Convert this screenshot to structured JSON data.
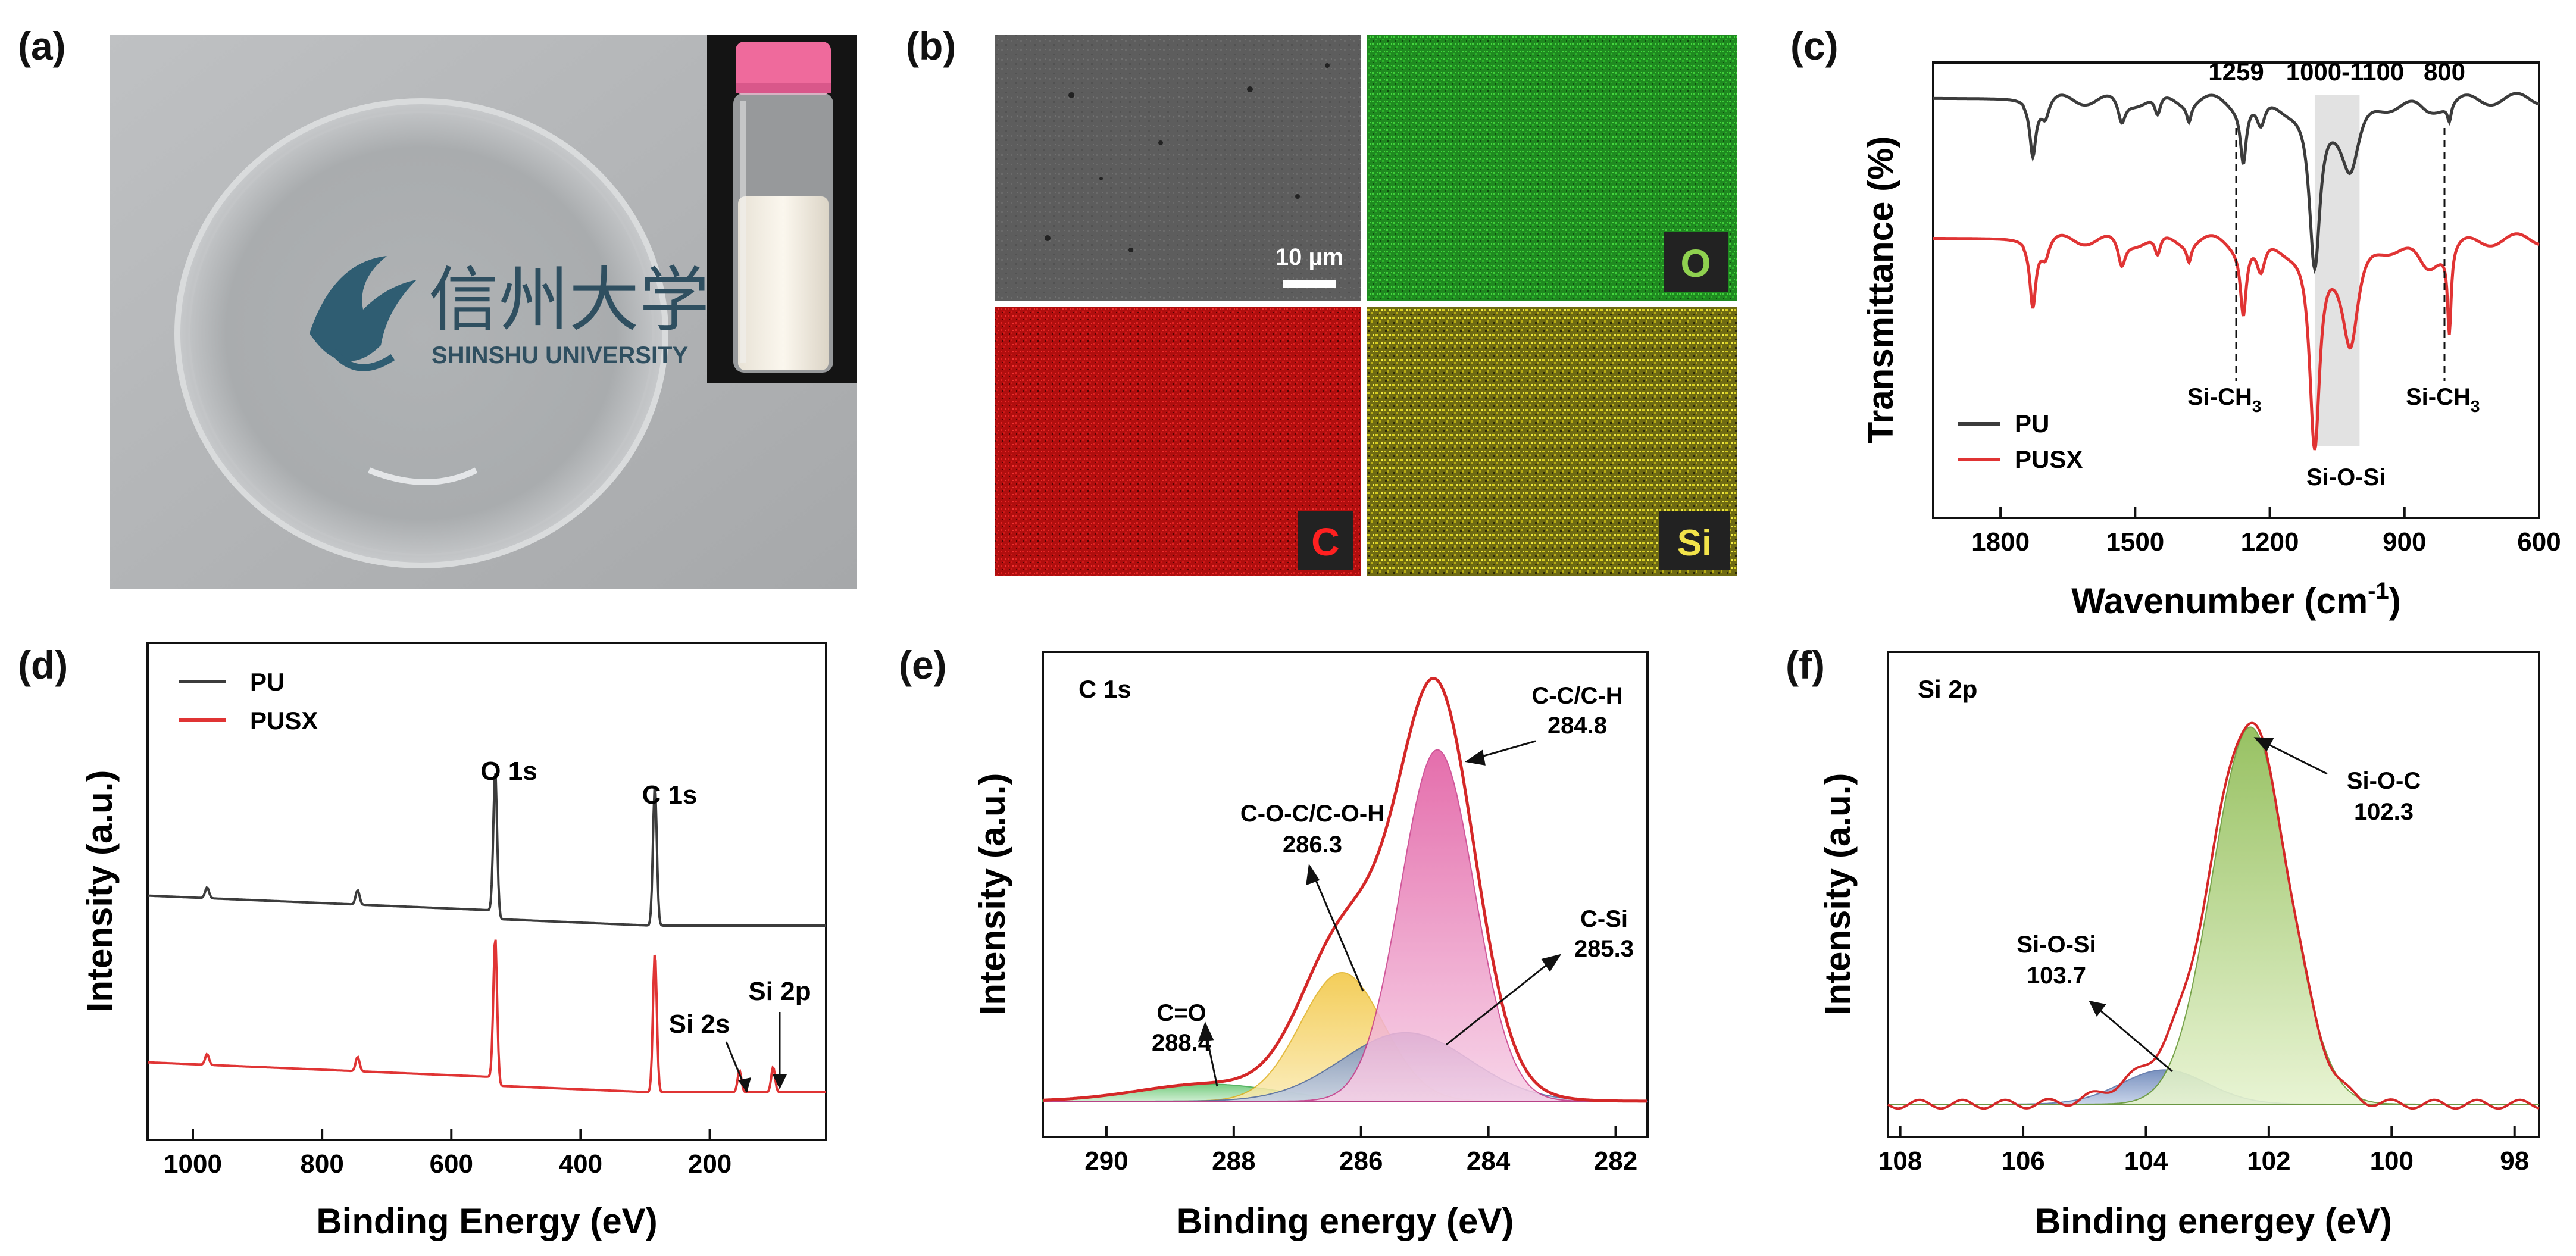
{
  "colors": {
    "pu": "#3c3c3c",
    "pusx": "#e03434",
    "envelope": "#d42828",
    "green": "#2fb032",
    "red": "#d61414",
    "yellow": "#d8c814"
  },
  "panels": {
    "a": {
      "label": "(a)",
      "logo_text_cn": "信州大学",
      "logo_text_en": "SHINSHU UNIVERSITY"
    },
    "b": {
      "label": "(b)",
      "scale_bar": "10 µm",
      "maps": [
        "O",
        "C",
        "Si"
      ]
    }
  },
  "chart_data": [
    {
      "id": "c",
      "panel_label": "(c)",
      "type": "line",
      "xlabel": "Wavenumber (cm",
      "xlabel_sup": "-1",
      "xlabel_end": ")",
      "ylabel": "Transmittance (%)",
      "xlim": [
        1950,
        600
      ],
      "xticks": [
        1800,
        1500,
        1200,
        900,
        600
      ],
      "legend": [
        "PU",
        "PUSX"
      ],
      "series": [
        {
          "name": "PU",
          "baseline": 1.0,
          "dips": [
            [
              1728,
              0.45,
              8
            ],
            [
              1700,
              0.15,
              10
            ],
            [
              1530,
              0.22,
              10
            ],
            [
              1450,
              0.18,
              8
            ],
            [
              1380,
              0.15,
              6
            ],
            [
              1259,
              0.5,
              8
            ],
            [
              1220,
              0.25,
              12
            ],
            [
              1100,
              1.5,
              15
            ],
            [
              1020,
              0.6,
              25
            ],
            [
              800,
              0.15,
              5
            ],
            [
              850,
              0.1,
              30
            ]
          ]
        },
        {
          "name": "PUSX",
          "baseline": 0.0,
          "dips": [
            [
              1728,
              0.55,
              8
            ],
            [
              1700,
              0.15,
              10
            ],
            [
              1530,
              0.25,
              10
            ],
            [
              1450,
              0.18,
              8
            ],
            [
              1380,
              0.15,
              6
            ],
            [
              1259,
              0.6,
              8
            ],
            [
              1220,
              0.3,
              12
            ],
            [
              1100,
              1.85,
              14
            ],
            [
              1020,
              0.9,
              22
            ],
            [
              800,
              0.75,
              5
            ],
            [
              850,
              0.25,
              30
            ]
          ]
        }
      ],
      "annotations": {
        "top": [
          "1259",
          "1000-1100",
          "800"
        ],
        "bottom": [
          "Si-CH",
          "Si-O-Si",
          "Si-CH"
        ],
        "sub3": "3"
      }
    },
    {
      "id": "d",
      "panel_label": "(d)",
      "type": "line",
      "xlabel": "Binding Energy (eV)",
      "ylabel": "Intensity (a.u.)",
      "xlim": [
        1070,
        20
      ],
      "xticks": [
        1000,
        800,
        600,
        400,
        200
      ],
      "legend": [
        "PU",
        "PUSX"
      ],
      "series": [
        {
          "name": "PU",
          "peaks": [
            [
              532,
              1.95
            ],
            [
              285,
              1.95
            ],
            [
              978,
              0.15
            ],
            [
              745,
              0.2
            ]
          ]
        },
        {
          "name": "PUSX",
          "peaks": [
            [
              532,
              1.95
            ],
            [
              285,
              1.95
            ],
            [
              978,
              0.15
            ],
            [
              745,
              0.2
            ],
            [
              154,
              0.3
            ],
            [
              102,
              0.35
            ]
          ]
        }
      ],
      "annotations": [
        "O 1s",
        "C 1s",
        "Si 2s",
        "Si 2p"
      ]
    },
    {
      "id": "e",
      "panel_label": "(e)",
      "type": "area",
      "title": "C 1s",
      "xlabel": "Binding energy (eV)",
      "ylabel": "Intensity (a.u.)",
      "xlim": [
        291,
        281.5
      ],
      "xticks": [
        290,
        288,
        286,
        284,
        282
      ],
      "components": [
        {
          "name": "C=O",
          "center": 288.4,
          "height": 0.04
        },
        {
          "name": "C-O-C/C-O-H",
          "center": 286.3,
          "height": 0.3
        },
        {
          "name": "C-Si",
          "center": 285.3,
          "height": 0.16
        },
        {
          "name": "C-C/C-H",
          "center": 284.8,
          "height": 0.82
        }
      ],
      "annotations": [
        {
          "text": "C=O",
          "value": "288.4"
        },
        {
          "text": "C-O-C/C-O-H",
          "value": "286.3"
        },
        {
          "text": "C-Si",
          "value": "285.3"
        },
        {
          "text": "C-C/C-H",
          "value": "284.8"
        }
      ]
    },
    {
      "id": "f",
      "panel_label": "(f)",
      "type": "area",
      "title": "Si 2p",
      "xlabel": "Binding energey (eV)",
      "ylabel": "Intensity (a.u.)",
      "xlim": [
        108.2,
        97.6
      ],
      "xticks": [
        108,
        106,
        104,
        102,
        100,
        98
      ],
      "components": [
        {
          "name": "Si-O-Si",
          "center": 103.7,
          "height": 0.08
        },
        {
          "name": "Si-O-C",
          "center": 102.3,
          "height": 0.88
        }
      ],
      "annotations": [
        {
          "text": "Si-O-Si",
          "value": "103.7"
        },
        {
          "text": "Si-O-C",
          "value": "102.3"
        }
      ]
    }
  ]
}
